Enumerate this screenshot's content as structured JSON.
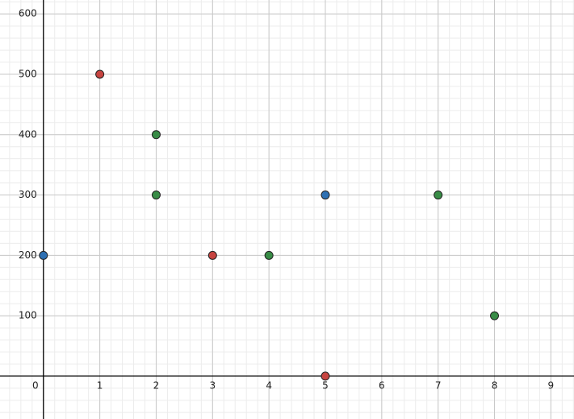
{
  "chart_data": {
    "type": "scatter",
    "xlim": [
      -0.77,
      9.41
    ],
    "ylim": [
      -71,
      623
    ],
    "xticks": [
      0,
      1,
      2,
      3,
      4,
      5,
      6,
      7,
      8,
      9
    ],
    "yticks": [
      100,
      200,
      300,
      400,
      500,
      600
    ],
    "grid": true,
    "series": [
      {
        "color": "#2d70b3",
        "x": [
          0,
          5
        ],
        "values": [
          200,
          300
        ]
      },
      {
        "color": "#c74440",
        "x": [
          1,
          3,
          5
        ],
        "values": [
          500,
          200,
          0
        ]
      },
      {
        "color": "#388c46",
        "x": [
          2,
          2,
          4,
          7,
          8
        ],
        "values": [
          400,
          300,
          200,
          300,
          100
        ]
      }
    ]
  }
}
